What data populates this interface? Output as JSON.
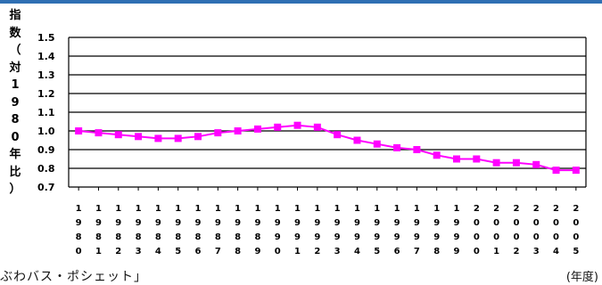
{
  "chart_data": {
    "type": "line",
    "ylabel": "指\n数\n（\n対\n1\n9\n8\n0\n年\n比\n）",
    "xunit": "(年度)",
    "ylim": [
      0.7,
      1.5
    ],
    "yticks": [
      "1.5",
      "1.4",
      "1.3",
      "1.2",
      "1.1",
      "1.0",
      "0.9",
      "0.8",
      "0.7"
    ],
    "grid": true,
    "categories": [
      "1980",
      "1981",
      "1982",
      "1983",
      "1984",
      "1985",
      "1986",
      "1987",
      "1988",
      "1989",
      "1990",
      "1991",
      "1992",
      "1993",
      "1994",
      "1995",
      "1996",
      "1997",
      "1998",
      "1999",
      "2000",
      "2001",
      "2002",
      "2003",
      "2004",
      "2005"
    ],
    "series": [
      {
        "color": "#ff00ff",
        "values": [
          1.0,
          0.99,
          0.98,
          0.97,
          0.96,
          0.96,
          0.97,
          0.99,
          1.0,
          1.01,
          1.02,
          1.03,
          1.02,
          0.98,
          0.95,
          0.93,
          0.91,
          0.9,
          0.87,
          0.85,
          0.85,
          0.83,
          0.83,
          0.82,
          0.79,
          0.79
        ]
      }
    ]
  },
  "footer": "ぶわバス・ポシェット」"
}
